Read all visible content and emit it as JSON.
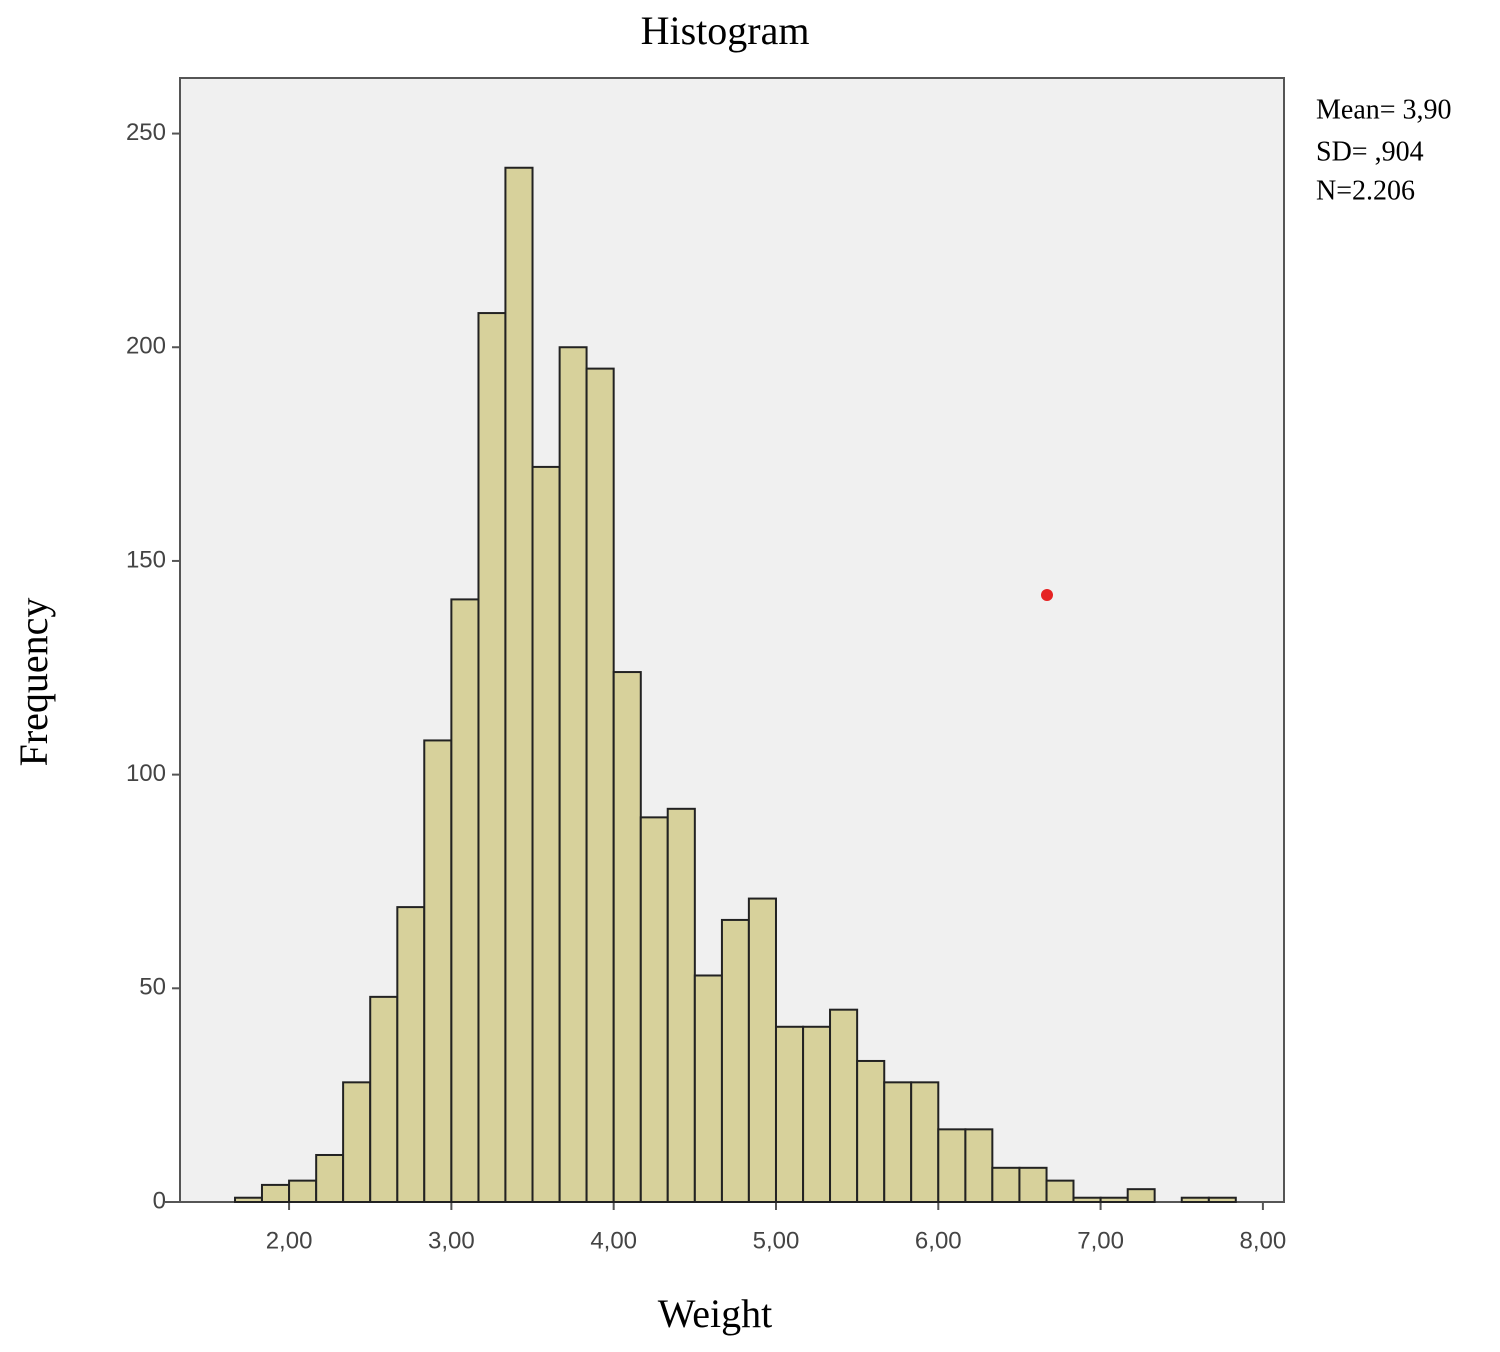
{
  "chart_data": {
    "type": "histogram",
    "title": "Histogram",
    "x_label": "Weight",
    "y_label": "Frequency",
    "stats": [
      "Mean= 3,90",
      "SD= ,904",
      "N=2.206"
    ],
    "bins": [
      1.667,
      1.833,
      2,
      2.167,
      2.333,
      2.5,
      2.667,
      2.833,
      3,
      3.167,
      3.333,
      3.5,
      3.667,
      3.833,
      4,
      4.167,
      4.333,
      4.5,
      4.667,
      4.833,
      5,
      5.167,
      5.333,
      5.5,
      5.667,
      5.833,
      6,
      6.167,
      6.333,
      6.5,
      6.667,
      6.833,
      7,
      7.167,
      7.333,
      7.5,
      7.667,
      7.833
    ],
    "values": [
      1,
      4,
      5,
      11,
      28,
      48,
      69,
      108,
      141,
      208,
      242,
      172,
      200,
      195,
      124,
      90,
      92,
      53,
      66,
      71,
      41,
      41,
      45,
      33,
      28,
      28,
      17,
      17,
      8,
      8,
      5,
      1,
      1,
      3,
      0,
      1,
      1
    ],
    "color": "#d7d19b",
    "xlim": [
      1.328,
      8.13
    ],
    "ylim": [
      0,
      263
    ],
    "xticks": [
      {
        "value": 2,
        "label": "2,00"
      },
      {
        "value": 3,
        "label": "3,00"
      },
      {
        "value": 4,
        "label": "4,00"
      },
      {
        "value": 5,
        "label": "5,00"
      },
      {
        "value": 6,
        "label": "6,00"
      },
      {
        "value": 7,
        "label": "7,00"
      },
      {
        "value": 8,
        "label": "8,00"
      }
    ],
    "yticks": [
      0,
      50,
      100,
      150,
      200,
      250
    ]
  }
}
